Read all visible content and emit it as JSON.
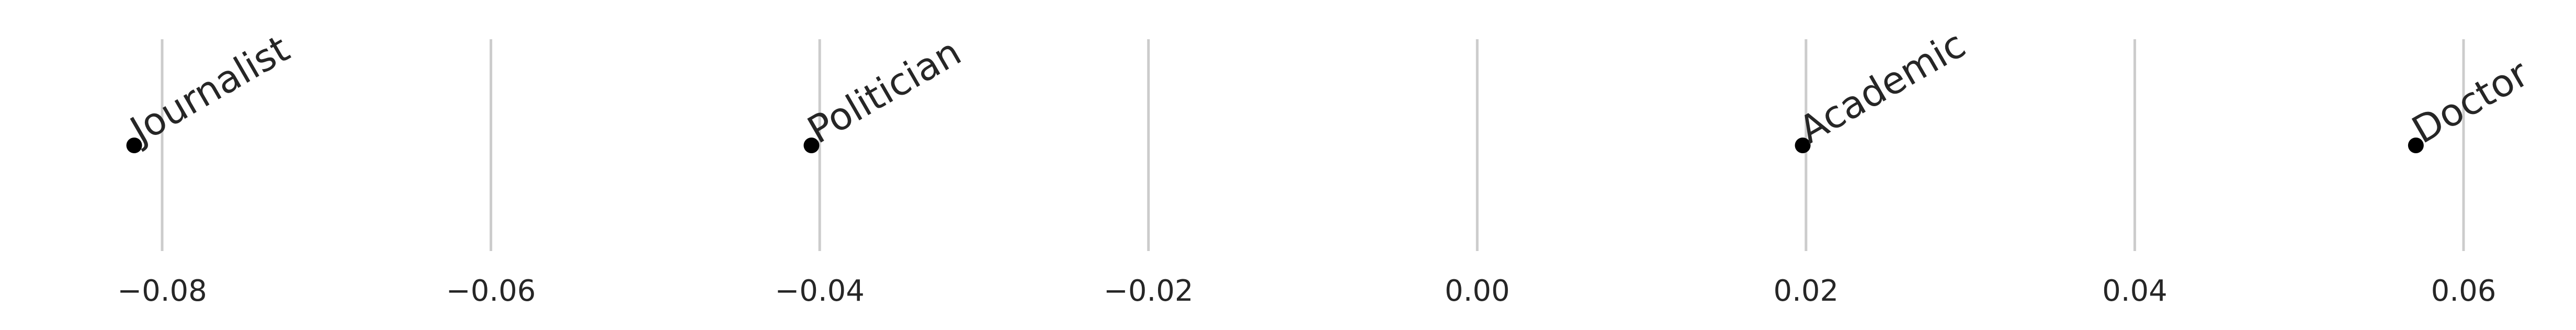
{
  "chart_data": {
    "type": "scatter",
    "title": "",
    "xlabel": "",
    "ylabel": "",
    "xlim": [
      -0.087,
      0.0625
    ],
    "grid": "vertical",
    "legend": "none",
    "ticks": [
      -0.08,
      -0.06,
      -0.04,
      -0.02,
      0.0,
      0.02,
      0.04,
      0.06
    ],
    "tick_labels": [
      "−0.08",
      "−0.06",
      "−0.04",
      "−0.02",
      "0.00",
      "0.02",
      "0.04",
      "0.06"
    ],
    "points": [
      {
        "label": "Journalist",
        "x": -0.0817
      },
      {
        "label": "Politician",
        "x": -0.0405
      },
      {
        "label": "Academic",
        "x": 0.0198
      },
      {
        "label": "Doctor",
        "x": 0.0571
      }
    ],
    "point_color": "#000000",
    "grid_color": "#cccccc",
    "text_color": "#262626"
  }
}
